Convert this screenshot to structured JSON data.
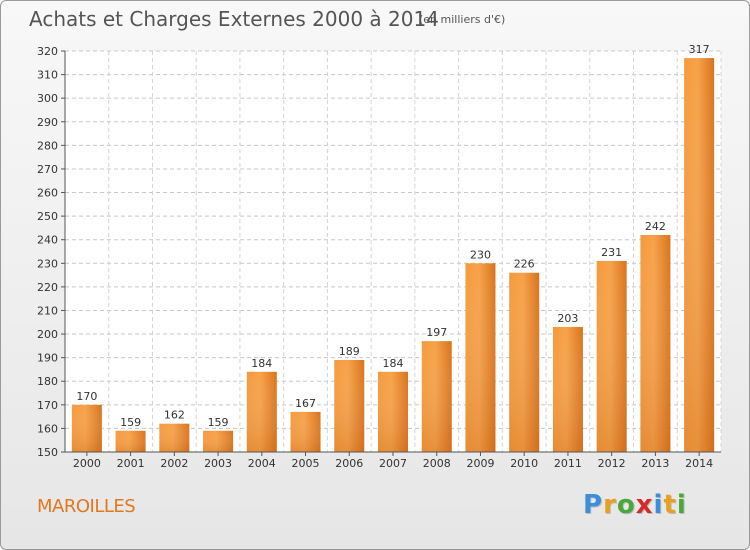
{
  "header": {
    "title": "Achats et Charges Externes 2000 à 2014",
    "unit": "(en milliers d'€)"
  },
  "footer": {
    "commune": "MAROILLES",
    "logo_letters": [
      "P",
      "r",
      "o",
      "x",
      "i",
      "t",
      "i"
    ],
    "logo_colors": [
      "#3a8fd8",
      "#e8a020",
      "#4aa83a",
      "#d82a2a",
      "#3a8fd8",
      "#e8a020",
      "#4aa83a"
    ]
  },
  "chart_data": {
    "type": "bar",
    "title": "Achats et Charges Externes 2000 à 2014",
    "subtitle": "(en milliers d'€)",
    "categories": [
      "2000",
      "2001",
      "2002",
      "2003",
      "2004",
      "2005",
      "2006",
      "2007",
      "2008",
      "2009",
      "2010",
      "2011",
      "2012",
      "2013",
      "2014"
    ],
    "values": [
      170,
      159,
      162,
      159,
      184,
      167,
      189,
      184,
      197,
      230,
      226,
      203,
      231,
      242,
      317
    ],
    "ylim": [
      150,
      320
    ],
    "yticks": [
      150,
      160,
      170,
      180,
      190,
      200,
      210,
      220,
      230,
      240,
      250,
      260,
      270,
      280,
      290,
      300,
      310,
      320
    ],
    "grid": true,
    "bar_color": "#f08c2e"
  }
}
